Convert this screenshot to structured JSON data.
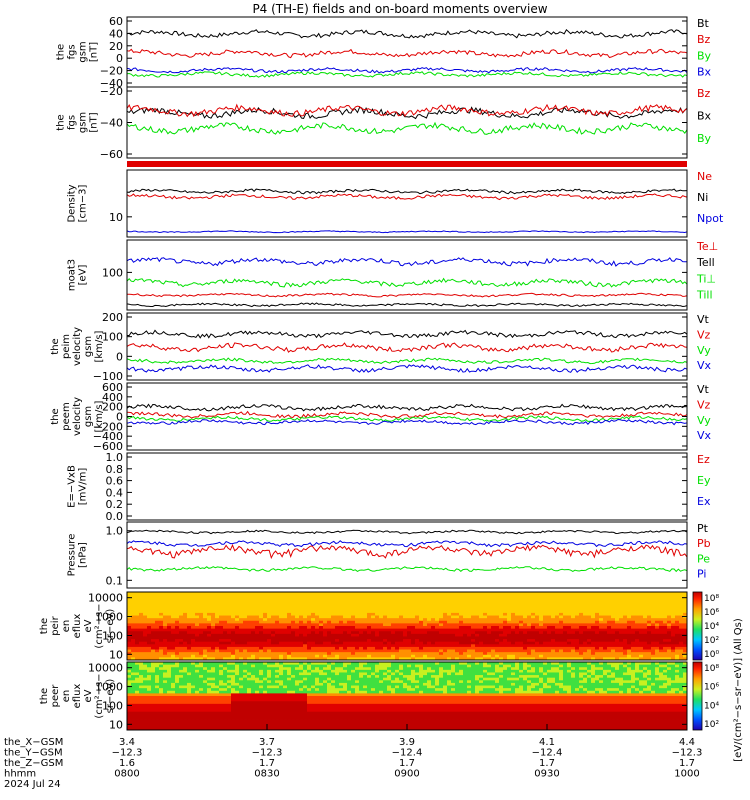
{
  "title": "P4 (TH-E) fields and on-board moments overview",
  "colors": {
    "black": "#000000",
    "red": "#e00000",
    "green": "#00e000",
    "blue": "#0000e0"
  },
  "chart_data": [
    {
      "type": "line",
      "ylabel": [
        "the",
        "fgs",
        "gsm",
        "[nT]"
      ],
      "ylim": [
        -40,
        60
      ],
      "ticks": [
        "60",
        "40",
        "20",
        "0",
        "−20",
        "−40"
      ],
      "legend": [
        {
          "name": "Bt",
          "color": "black"
        },
        {
          "name": "Bz",
          "color": "red"
        },
        {
          "name": "By",
          "color": "green"
        },
        {
          "name": "Bx",
          "color": "blue"
        }
      ],
      "series": [
        {
          "color": "black",
          "base": 36,
          "amp": 6
        },
        {
          "color": "red",
          "base": 8,
          "amp": 6
        },
        {
          "color": "blue",
          "base": -16,
          "amp": 4
        },
        {
          "color": "green",
          "base": -22,
          "amp": 4
        }
      ]
    },
    {
      "type": "line",
      "ylabel": [
        "the",
        "fgs",
        "gsm",
        "[nT]"
      ],
      "ylim": [
        -70,
        -10
      ],
      "ticks": [
        "−20",
        "−40",
        "−60"
      ],
      "legend": [
        {
          "name": "Bz",
          "color": "red"
        },
        {
          "name": "Bx",
          "color": "black"
        },
        {
          "name": "By",
          "color": "green"
        }
      ],
      "series": [
        {
          "color": "black",
          "base": -32,
          "amp": 5
        },
        {
          "color": "red",
          "base": -30,
          "amp": 5
        },
        {
          "color": "green",
          "base": -45,
          "amp": 5
        }
      ]
    },
    {
      "type": "line",
      "ylabel": [
        "Density",
        "[cm−3]"
      ],
      "ylim": [
        5,
        50
      ],
      "log": true,
      "ticks": [
        "10"
      ],
      "legend": [
        {
          "name": "Ne",
          "color": "red"
        },
        {
          "name": "Ni",
          "color": "black"
        },
        {
          "name": "Npot",
          "color": "blue"
        }
      ],
      "series": [
        {
          "color": "black",
          "base": 24,
          "amp": 2
        },
        {
          "color": "red",
          "base": 20,
          "amp": 2
        },
        {
          "color": "blue",
          "base": 6,
          "amp": 0.2
        }
      ]
    },
    {
      "type": "line",
      "ylabel": [
        "moat3",
        "[eV]"
      ],
      "ylim": [
        20,
        400
      ],
      "log": true,
      "ticks": [
        "100"
      ],
      "legend": [
        {
          "name": "Te⊥",
          "color": "red"
        },
        {
          "name": "Tell",
          "color": "black"
        },
        {
          "name": "Ti⊥",
          "color": "green"
        },
        {
          "name": "Till",
          "color": "green"
        }
      ],
      "series": [
        {
          "color": "blue",
          "base": 160,
          "amp": 30
        },
        {
          "color": "green",
          "base": 65,
          "amp": 12
        },
        {
          "color": "red",
          "base": 38,
          "amp": 3
        },
        {
          "color": "black",
          "base": 25,
          "amp": 2
        }
      ]
    },
    {
      "type": "line",
      "ylabel": [
        "the",
        "peim",
        "velocity",
        "gsm",
        "[km/s]"
      ],
      "ylim": [
        -130,
        220
      ],
      "ticks": [
        "200",
        "100",
        "0",
        "−100"
      ],
      "legend": [
        {
          "name": "Vt",
          "color": "black"
        },
        {
          "name": "Vz",
          "color": "red"
        },
        {
          "name": "Vy",
          "color": "green"
        },
        {
          "name": "Vx",
          "color": "blue"
        }
      ],
      "series": [
        {
          "color": "black",
          "base": 110,
          "amp": 20
        },
        {
          "color": "red",
          "base": 40,
          "amp": 25
        },
        {
          "color": "green",
          "base": -30,
          "amp": 15
        },
        {
          "color": "blue",
          "base": -70,
          "amp": 20
        }
      ]
    },
    {
      "type": "line",
      "ylabel": [
        "the",
        "peem",
        "velocity",
        "gsm",
        "[km/s]"
      ],
      "ylim": [
        -600,
        600
      ],
      "ticks": [
        "600",
        "400",
        "200",
        "0",
        "−200",
        "−400",
        "−600"
      ],
      "legend": [
        {
          "name": "Vt",
          "color": "black"
        },
        {
          "name": "Vz",
          "color": "red"
        },
        {
          "name": "Vy",
          "color": "green"
        },
        {
          "name": "Vx",
          "color": "blue"
        }
      ],
      "series": [
        {
          "color": "black",
          "base": 160,
          "amp": 60
        },
        {
          "color": "red",
          "base": 30,
          "amp": 60
        },
        {
          "color": "green",
          "base": -40,
          "amp": 50
        },
        {
          "color": "blue",
          "base": -100,
          "amp": 50
        }
      ]
    },
    {
      "type": "line",
      "ylabel": [
        "E=−VxB",
        "[mV/m]"
      ],
      "ylim": [
        0,
        1
      ],
      "ticks": [
        "1.0",
        "0.8",
        "0.6",
        "0.4",
        "0.2",
        "0.0"
      ],
      "legend": [
        {
          "name": "Ez",
          "color": "red"
        },
        {
          "name": "Ey",
          "color": "green"
        },
        {
          "name": "Ex",
          "color": "blue"
        }
      ],
      "series": []
    },
    {
      "type": "line",
      "ylabel": [
        "Pressure",
        "[nPa]"
      ],
      "ylim": [
        0.07,
        1.5
      ],
      "log": true,
      "ticks": [
        "1.0",
        "0.1"
      ],
      "legend": [
        {
          "name": "Pt",
          "color": "black"
        },
        {
          "name": "Pb",
          "color": "red"
        },
        {
          "name": "Pe",
          "color": "green"
        },
        {
          "name": "Pi",
          "color": "blue"
        }
      ],
      "series": [
        {
          "color": "black",
          "base": 0.95,
          "amp": 0.08
        },
        {
          "color": "blue",
          "base": 0.55,
          "amp": 0.08
        },
        {
          "color": "red",
          "base": 0.4,
          "amp": 0.12
        },
        {
          "color": "green",
          "base": 0.17,
          "amp": 0.02
        }
      ]
    },
    {
      "type": "heatmap",
      "ylabel": [
        "the",
        "peir",
        "en",
        "eflux",
        "eV",
        "(cm²−s−",
        "sr−eV)"
      ],
      "ylim": [
        5,
        20000
      ],
      "log": true,
      "ticks": [
        "10000",
        "1000",
        "100",
        "10"
      ]
    },
    {
      "type": "heatmap",
      "ylabel": [
        "the",
        "peer",
        "en",
        "eflux",
        "eV",
        "(cm²−s−",
        "sr−eV)"
      ],
      "ylim": [
        5,
        20000
      ],
      "log": true,
      "ticks": [
        "10000",
        "1000",
        "100",
        "10"
      ]
    }
  ],
  "colorbar1": {
    "label": "[eV/(cm²−s−sr−eV)] (All Qs)",
    "ticks": [
      "10⁸",
      "10⁶",
      "10⁴",
      "10²",
      "10⁰"
    ]
  },
  "colorbar2": {
    "ticks": [
      "10⁸",
      "10⁶",
      "10⁴",
      "10²"
    ]
  },
  "xaxis": {
    "row_labels": [
      "the_X−GSM",
      "the_Y−GSM",
      "the_Z−GSM",
      "hhmm",
      "2024 Jul 24"
    ],
    "columns": [
      [
        "3.4",
        "−12.3",
        "1.6",
        "0800"
      ],
      [
        "3.7",
        "−12.3",
        "1.7",
        "0830"
      ],
      [
        "3.9",
        "−12.4",
        "1.7",
        "0900"
      ],
      [
        "4.1",
        "−12.4",
        "1.7",
        "0930"
      ],
      [
        "4.4",
        "−12.3",
        "1.7",
        "1000"
      ]
    ]
  }
}
